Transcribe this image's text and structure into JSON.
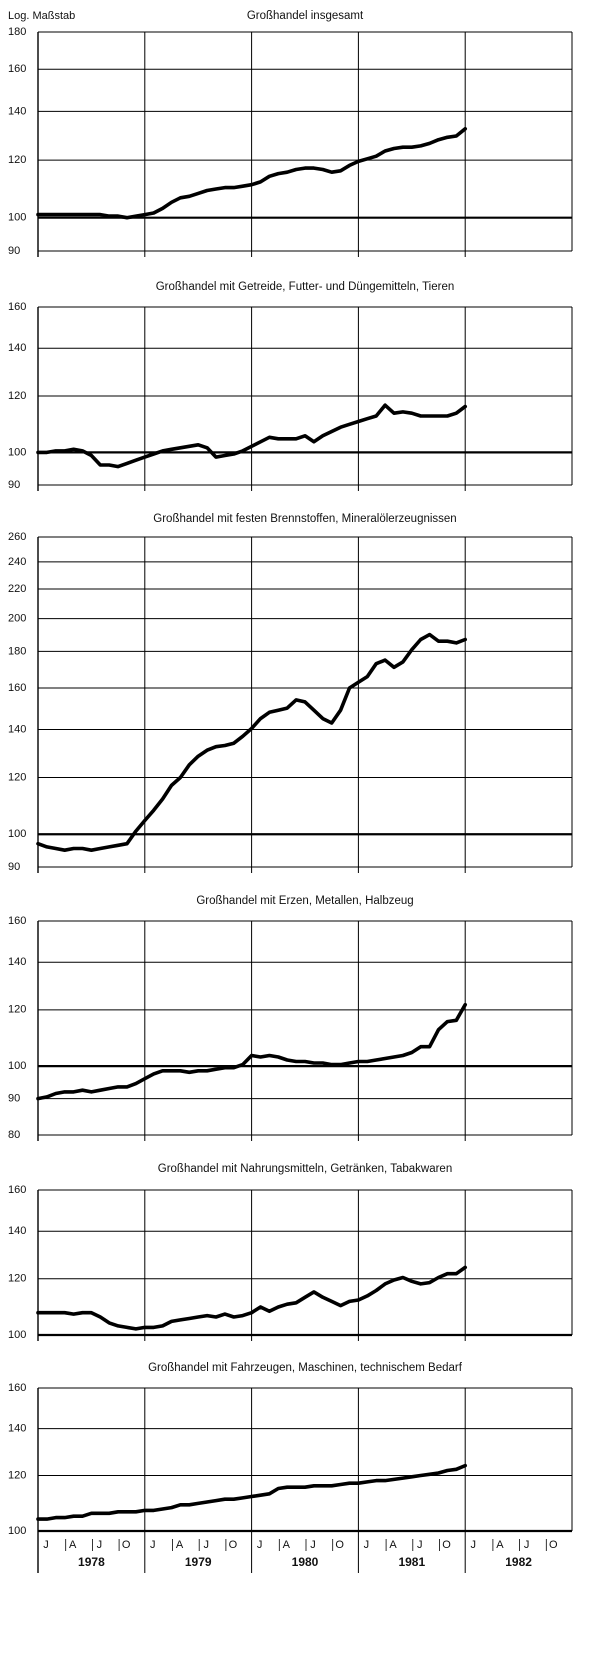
{
  "chart_data": [
    {
      "type": "line",
      "y_axis_label": "Log. Maßstab",
      "title": "Großhandel insgesamt",
      "log_scale": true,
      "ylim": [
        90,
        180
      ],
      "yticks": [
        90,
        100,
        120,
        140,
        160,
        180
      ],
      "baseline": 100,
      "color": "#000000",
      "values": [
        101,
        101,
        101,
        101,
        101,
        101,
        101,
        101,
        100.5,
        100.5,
        100,
        100.5,
        101,
        101.5,
        103,
        105,
        106.5,
        107,
        108,
        109,
        109.5,
        110,
        110,
        110.5,
        111,
        112,
        114,
        115,
        115.5,
        116.5,
        117,
        117,
        116.5,
        115.5,
        116,
        118,
        119.5,
        120.5,
        121.5,
        123.5,
        124.5,
        125,
        125,
        125.5,
        126.5,
        128,
        129,
        129.5,
        132.5
      ]
    },
    {
      "type": "line",
      "title": "Großhandel mit Getreide, Futter- und Düngemitteln, Tieren",
      "log_scale": true,
      "ylim": [
        90,
        160
      ],
      "yticks": [
        90,
        100,
        120,
        140,
        160
      ],
      "baseline": 100,
      "color": "#000000",
      "values": [
        100,
        100,
        100.5,
        100.5,
        101,
        100.5,
        99,
        96,
        96,
        95.5,
        96.5,
        97.5,
        98.5,
        99.5,
        100.5,
        101,
        101.5,
        102,
        102.5,
        101.5,
        98.5,
        99,
        99.5,
        100.5,
        102,
        103.5,
        105,
        104.5,
        104.5,
        104.5,
        105.5,
        103.5,
        105.5,
        107,
        108.5,
        109.5,
        110.5,
        111.5,
        112.5,
        116.5,
        113.5,
        114,
        113.5,
        112.5,
        112.5,
        112.5,
        112.5,
        113.5,
        116
      ]
    },
    {
      "type": "line",
      "title": "Großhandel mit festen Brennstoffen, Mineralölerzeugnissen",
      "log_scale": true,
      "ylim": [
        90,
        260
      ],
      "yticks": [
        90,
        100,
        120,
        140,
        160,
        180,
        200,
        220,
        240,
        260
      ],
      "baseline": 100,
      "color": "#000000",
      "values": [
        97,
        96,
        95.5,
        95,
        95.5,
        95.5,
        95,
        95.5,
        96,
        96.5,
        97,
        101,
        104.5,
        108,
        112,
        117,
        120,
        125,
        128.5,
        131,
        132.5,
        133,
        134,
        137,
        140.5,
        145,
        148,
        149,
        150,
        154,
        153,
        149,
        145,
        143,
        149,
        160,
        163,
        166,
        173,
        175,
        171,
        174,
        181,
        187,
        190,
        186,
        186,
        185,
        187
      ]
    },
    {
      "type": "line",
      "title": "Großhandel mit Erzen, Metallen, Halbzeug",
      "log_scale": true,
      "ylim": [
        80,
        160
      ],
      "yticks": [
        80,
        90,
        100,
        120,
        140,
        160
      ],
      "baseline": 100,
      "color": "#000000",
      "values": [
        90,
        90.5,
        91.5,
        92,
        92,
        92.5,
        92,
        92.5,
        93,
        93.5,
        93.5,
        94.5,
        96,
        97.5,
        98.5,
        98.5,
        98.5,
        98,
        98.5,
        98.5,
        99,
        99.5,
        99.5,
        100.5,
        103.5,
        103,
        103.5,
        103,
        102,
        101.5,
        101.5,
        101,
        101,
        100.5,
        100.5,
        101,
        101.5,
        101.5,
        102,
        102.5,
        103,
        103.5,
        104.5,
        106.5,
        106.5,
        112.5,
        115.5,
        116,
        122
      ]
    },
    {
      "type": "line",
      "title": "Großhandel mit Nahrungsmitteln, Getränken, Tabakwaren",
      "log_scale": true,
      "ylim": [
        100,
        160
      ],
      "yticks": [
        100,
        120,
        140,
        160
      ],
      "baseline": 100,
      "color": "#000000",
      "values": [
        107.5,
        107.5,
        107.5,
        107.5,
        107,
        107.5,
        107.5,
        106,
        104,
        103,
        102.5,
        102,
        102.5,
        102.5,
        103,
        104.5,
        105,
        105.5,
        106,
        106.5,
        106,
        107,
        106,
        106.5,
        107.5,
        109.5,
        108,
        109.5,
        110.5,
        111,
        113,
        115,
        113,
        111.5,
        110,
        111.5,
        112,
        113.5,
        115.5,
        118,
        119.5,
        120.5,
        119,
        118,
        118.5,
        120.5,
        122,
        122,
        124.5
      ]
    },
    {
      "type": "line",
      "title": "Großhandel mit Fahrzeugen, Maschinen, technischem Bedarf",
      "log_scale": true,
      "ylim": [
        100,
        160
      ],
      "yticks": [
        100,
        120,
        140,
        160
      ],
      "baseline": 100,
      "color": "#000000",
      "categories": [
        "J",
        null,
        null,
        "A",
        null,
        null,
        "J",
        null,
        null,
        "O",
        null,
        null,
        "J",
        null,
        null,
        "A",
        null,
        null,
        "J",
        null,
        null,
        "O",
        null,
        null,
        "J",
        null,
        null,
        "A",
        null,
        null,
        "J",
        null,
        null,
        "O",
        null,
        null,
        "J",
        null,
        null,
        "A",
        null,
        null,
        "J",
        null,
        null,
        "O",
        null,
        null,
        "J",
        null,
        null,
        "A",
        null,
        null,
        "J",
        null,
        null,
        "O",
        null,
        null
      ],
      "years": [
        "1978",
        "1979",
        "1980",
        "1981",
        "1982"
      ],
      "values": [
        104,
        104,
        104.5,
        104.5,
        105,
        105,
        106,
        106,
        106,
        106.5,
        106.5,
        106.5,
        107,
        107,
        107.5,
        108,
        109,
        109,
        109.5,
        110,
        110.5,
        111,
        111,
        111.5,
        112,
        112.5,
        113,
        115,
        115.5,
        115.5,
        115.5,
        116,
        116,
        116,
        116.5,
        117,
        117,
        117.5,
        118,
        118,
        118.5,
        119,
        119.5,
        120,
        120.5,
        121,
        122,
        122.5,
        124,
        null,
        null,
        null,
        null,
        null,
        null,
        null,
        null,
        null,
        null,
        null
      ]
    }
  ]
}
